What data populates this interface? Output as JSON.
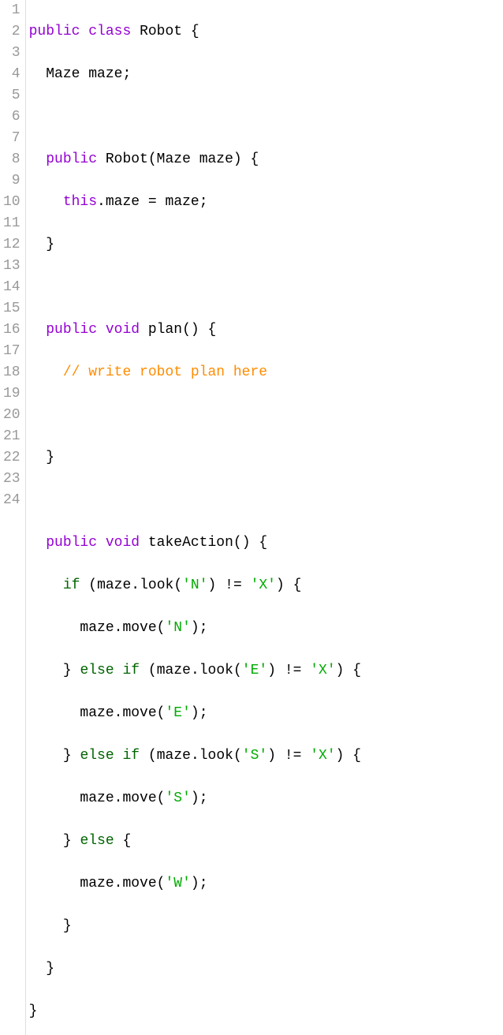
{
  "colors": {
    "keyword": "#9400d3",
    "control": "#006400",
    "charLiteral": "#00aa00",
    "comment": "#ff8c00",
    "text": "#000000",
    "gutterText": "#999999",
    "gutterBorder": "#e0e0e0",
    "background": "#ffffff"
  },
  "typography": {
    "fontFamily": "Courier New, monospace",
    "fontSize": 18,
    "lineHeight": 27
  },
  "lineNumbers": [
    "1",
    "2",
    "3",
    "4",
    "5",
    "6",
    "7",
    "8",
    "9",
    "10",
    "11",
    "12",
    "13",
    "14",
    "15",
    "16",
    "17",
    "18",
    "19",
    "20",
    "21",
    "22",
    "23",
    "24"
  ],
  "tokens": {
    "kw_public": "public",
    "kw_class": "class",
    "kw_void": "void",
    "kw_this": "this",
    "kw_if": "if",
    "kw_else": "else",
    "cls_Robot": "Robot",
    "cls_Maze": "Maze",
    "id_maze": "maze",
    "method_plan": "plan",
    "method_takeAction": "takeAction",
    "method_look": "look",
    "method_move": "move",
    "comment_plan": "// write robot plan here",
    "char_N": "'N'",
    "char_E": "'E'",
    "char_S": "'S'",
    "char_W": "'W'",
    "char_X": "'X'",
    "op_ne": "!=",
    "dot": ".",
    "semi": ";",
    "lbrace": "{",
    "rbrace": "}",
    "lparen": "(",
    "rparen": ")",
    "eq": "="
  }
}
